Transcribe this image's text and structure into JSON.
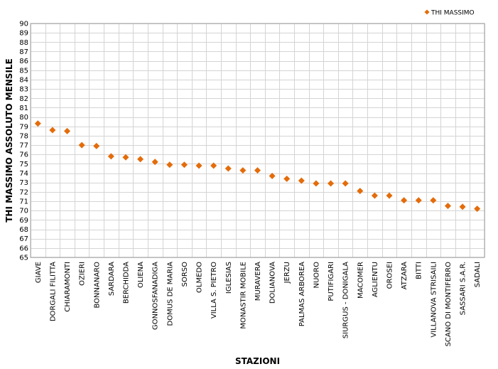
{
  "chart_data": {
    "type": "scatter",
    "marker": "diamond",
    "marker_color": "#e46c0a",
    "xlabel": "STAZIONI",
    "ylabel": "THI MASSIMO ASSOLUTO MENSILE",
    "ylim": [
      65,
      90
    ],
    "ystep": 1,
    "grid": true,
    "legend_position": "top-right",
    "categories": [
      "GIAVE",
      "DORGALI FILITTA",
      "CHIARAMONTI",
      "OZIERI",
      "BONNANARO",
      "SARDARA",
      "BERCHIDDA",
      "OLIENA",
      "GONNOSFANADIGA",
      "DOMUS DE MARIA",
      "SORSO",
      "OLMEDO",
      "VILLA S. PIETRO",
      "IGLESIAS",
      "MONASTIR MOBILE",
      "MURAVERA",
      "DOLIANOVA",
      "JERZU",
      "PALMAS ARBOREA",
      "NUORO",
      "PUTIFIGARI",
      "SIURGUS - DONIGALA",
      "MACOMER",
      "AGLIENTU",
      "OROSEI",
      "ATZARA",
      "BITTI",
      "VILLANOVA STRISAILI",
      "SCANO DI MONTIFERRO",
      "SASSARI S.A.R.",
      "SADALI"
    ],
    "series": [
      {
        "name": "THI MASSIMO",
        "values": [
          79.3,
          78.6,
          78.5,
          77.0,
          76.9,
          75.8,
          75.7,
          75.5,
          75.2,
          74.9,
          74.9,
          74.8,
          74.8,
          74.5,
          74.3,
          74.3,
          73.7,
          73.4,
          73.2,
          72.9,
          72.9,
          72.9,
          72.1,
          71.6,
          71.6,
          71.1,
          71.1,
          71.1,
          70.5,
          70.4,
          70.2
        ]
      }
    ]
  }
}
